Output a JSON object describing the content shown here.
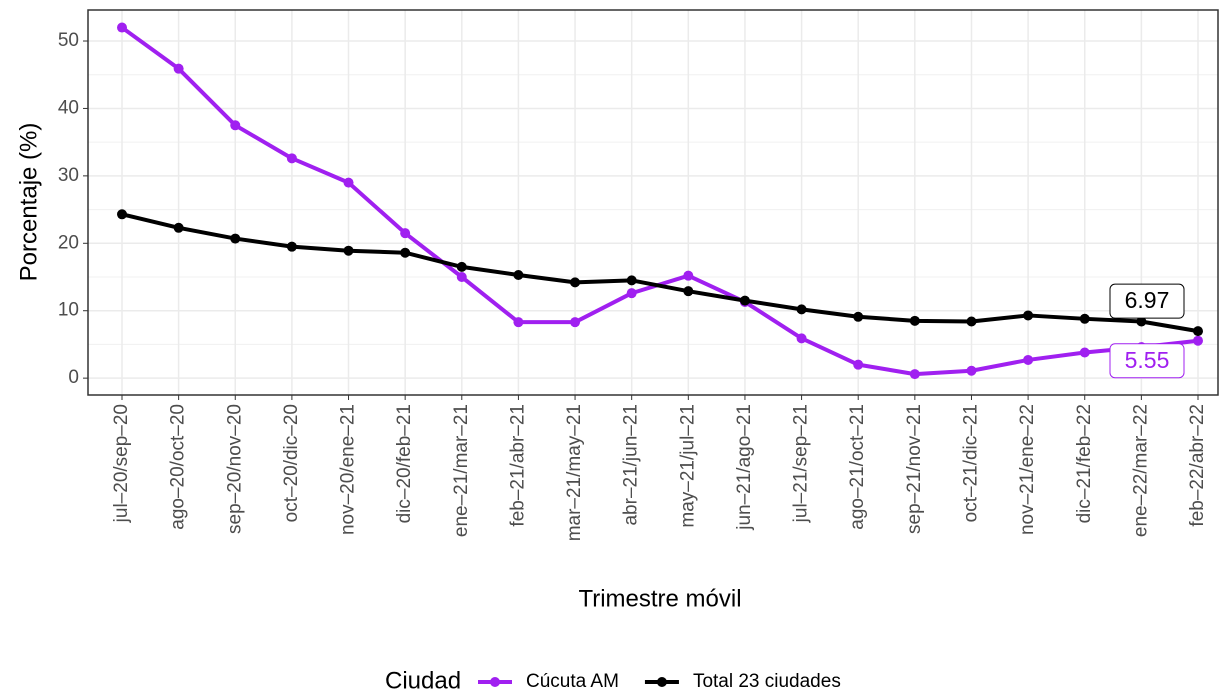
{
  "chart_data": {
    "type": "line",
    "x_label": "Trimestre móvil",
    "y_label": "Porcentaje (%)",
    "legend_title": "Ciudad",
    "legend": "bottom",
    "grid": true,
    "categories": [
      "jul–20/sep–20",
      "ago–20/oct–20",
      "sep–20/nov–20",
      "oct–20/dic–20",
      "nov–20/ene–21",
      "dic–20/feb–21",
      "ene–21/mar–21",
      "feb–21/abr–21",
      "mar–21/may–21",
      "abr–21/jun–21",
      "may–21/jul–21",
      "jun–21/ago–21",
      "jul–21/sep–21",
      "ago–21/oct–21",
      "sep–21/nov–21",
      "oct–21/dic–21",
      "nov–21/ene–22",
      "dic–21/feb–22",
      "ene–22/mar–22",
      "feb–22/abr–22"
    ],
    "series": [
      {
        "name": "Cúcuta AM",
        "color": "#a020f0",
        "values": [
          52,
          45.9,
          37.5,
          32.6,
          29,
          21.5,
          15,
          8.3,
          8.3,
          12.6,
          15.2,
          11.3,
          5.9,
          2,
          0.6,
          1.1,
          2.7,
          3.8,
          4.6,
          5.55
        ]
      },
      {
        "name": "Total 23 ciudades",
        "color": "#000000",
        "values": [
          24.3,
          22.3,
          20.7,
          19.5,
          18.9,
          18.6,
          16.5,
          15.3,
          14.2,
          14.5,
          12.9,
          11.5,
          10.2,
          9.1,
          8.5,
          8.4,
          9.3,
          8.8,
          8.4,
          6.97
        ]
      }
    ],
    "ylim": [
      -2.5,
      54.6
    ],
    "yticks": [
      0,
      10,
      20,
      30,
      40,
      50
    ]
  }
}
